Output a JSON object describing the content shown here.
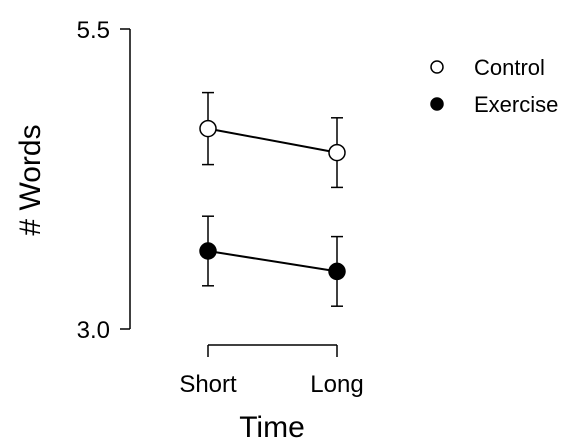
{
  "chart_data": {
    "type": "line",
    "title": "",
    "xlabel": "Time",
    "ylabel": "# Words",
    "categories": [
      "Short",
      "Long"
    ],
    "ylim": [
      3.0,
      5.5
    ],
    "yticks": [
      "5.5",
      "3.0"
    ],
    "grid": false,
    "legend_position": "top-right",
    "series": [
      {
        "name": "Control",
        "marker": "open-circle",
        "color": "#000000",
        "values": [
          4.67,
          4.47
        ],
        "error": [
          0.3,
          0.29
        ]
      },
      {
        "name": "Exercise",
        "marker": "filled-circle",
        "color": "#000000",
        "values": [
          3.65,
          3.48
        ],
        "error": [
          0.29,
          0.29
        ]
      }
    ]
  }
}
